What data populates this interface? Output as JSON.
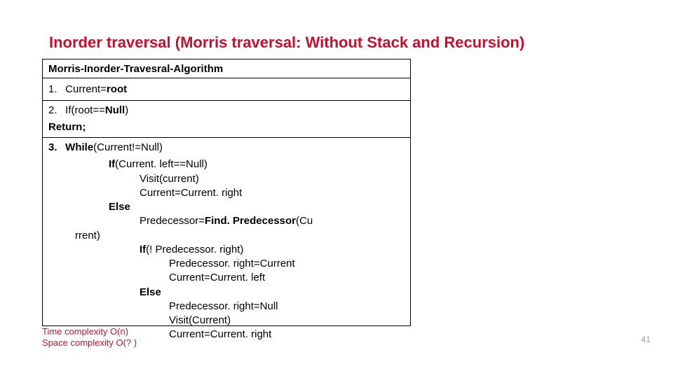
{
  "title": "Inorder traversal (Morris traversal: Without Stack and Recursion)",
  "algo": {
    "header": "Morris-Inorder-Travesral-Algorithm",
    "step1_num": "1.",
    "step1_text_a": "Current=",
    "step1_text_b": "root",
    "step2_num": "2.",
    "step2_text_a": "If(root==",
    "step2_text_b": "Null",
    "step2_text_c": ")",
    "step2_return": "Return;",
    "step3_num": "3.",
    "step3_while_a": "While",
    "step3_while_b": "(Current!=Null)",
    "if1_a": "If",
    "if1_b": "(Current. left==Null)",
    "visit1": "Visit(current)",
    "cur_right1": "Current=Current. right",
    "else1": "Else",
    "pred_a": "Predecessor=",
    "pred_b": "Find. Predecessor",
    "pred_c": "(Cu",
    "pred_cont": "rrent)",
    "if2_a": "If",
    "if2_b": "(! Predecessor. right)",
    "pr_cur": "Predecessor. right=Current",
    "cur_left": "Current=Current. left",
    "else2": "Else",
    "pr_null": "Predecessor. right=Null",
    "visit2": "Visit(Current)",
    "cur_right2": "Current=Current. right"
  },
  "complexity": {
    "time": "Time complexity O(n)",
    "space": "Space complexity O(? )"
  },
  "pagenum": "41",
  "colors": {
    "title": "#c8102e",
    "border": "#000000",
    "text": "#000000",
    "complexity": "#c8102e",
    "pagenum": "#9c9c9c",
    "background": "#ffffff"
  }
}
